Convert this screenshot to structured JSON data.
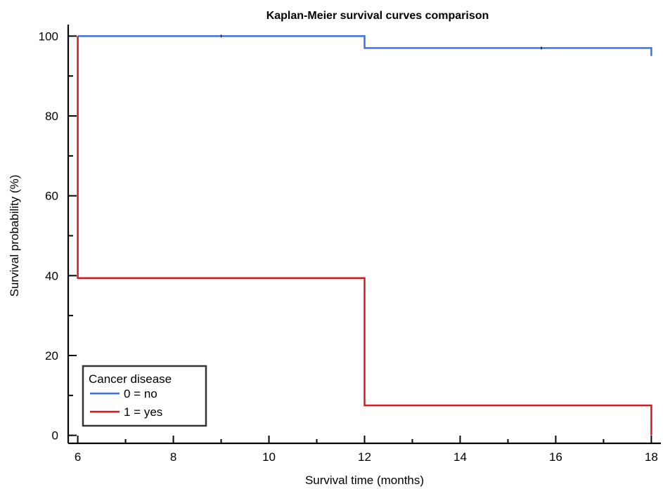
{
  "chart_data": {
    "type": "line",
    "title": "Kaplan-Meier survival curves comparison",
    "xlabel": "Survival time (months)",
    "ylabel": "Survival probability (%)",
    "xlim": [
      5.8,
      18.2
    ],
    "ylim": [
      -2,
      102
    ],
    "x_ticks": [
      6,
      8,
      10,
      12,
      14,
      16,
      18
    ],
    "y_ticks": [
      0,
      20,
      40,
      60,
      80,
      100
    ],
    "x_minor_step": 1,
    "y_minor_step": 10,
    "grid": false,
    "legend": {
      "title": "Cancer disease",
      "placement": "bottom-left"
    },
    "series": [
      {
        "name": "0 = no",
        "color": "#3F6FE8",
        "step": true,
        "points": [
          {
            "x": 6,
            "y": 100
          },
          {
            "x": 12,
            "y": 97
          },
          {
            "x": 18,
            "y": 95
          }
        ],
        "censor_marks": [
          9,
          15.7
        ]
      },
      {
        "name": "1 = yes",
        "color": "#D7191C",
        "step": true,
        "points": [
          {
            "x": 6,
            "y": 100
          },
          {
            "x": 6,
            "y": 39.4
          },
          {
            "x": 12,
            "y": 7.5
          },
          {
            "x": 18,
            "y": 0
          }
        ],
        "censor_marks": []
      }
    ]
  }
}
